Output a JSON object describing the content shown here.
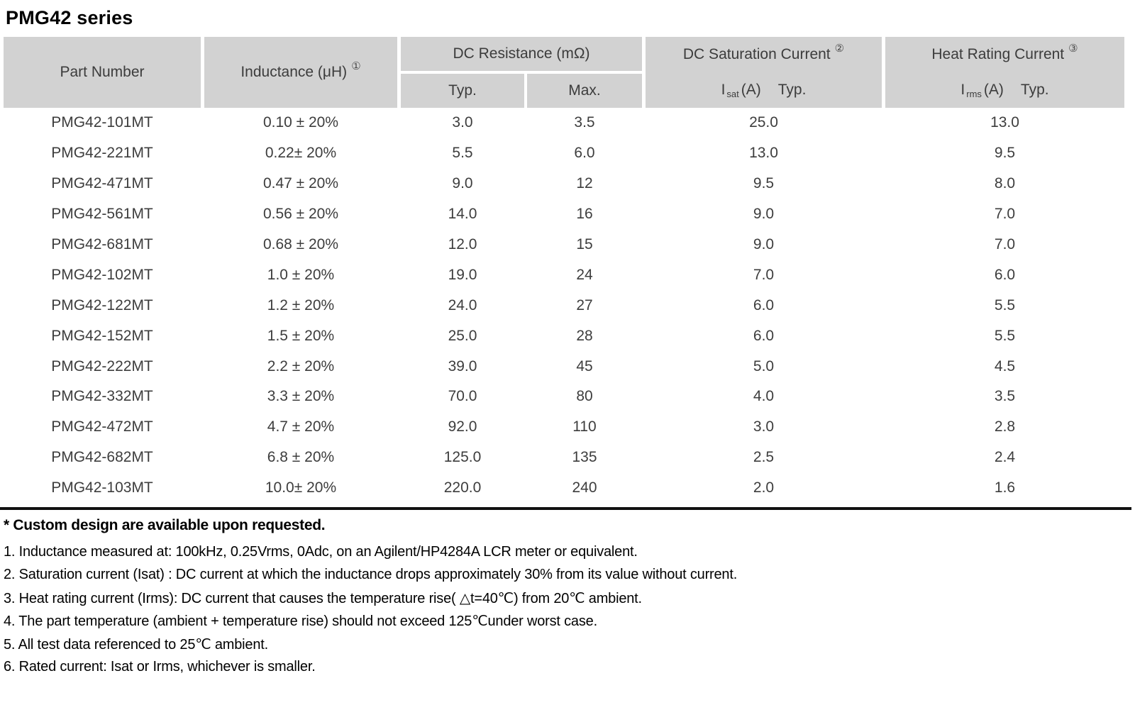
{
  "page_title": "PMG42 series",
  "table": {
    "headers": {
      "part_number": "Part Number",
      "inductance": "Inductance (μH)",
      "inductance_note_ref": "①",
      "dc_resistance_group": "DC Resistance (mΩ)",
      "dc_resistance_typ": "Typ.",
      "dc_resistance_max": "Max.",
      "dc_saturation_group": "DC Saturation Current",
      "dc_saturation_note_ref": "②",
      "isat_base": "I",
      "isat_sub": "sat",
      "isat_unit": "(A)",
      "isat_typ": "Typ.",
      "heat_rating_group": "Heat Rating Current",
      "heat_rating_note_ref": "③",
      "irms_base": "I",
      "irms_sub": "rms",
      "irms_unit": "(A)",
      "irms_typ": "Typ."
    },
    "rows": [
      [
        "PMG42-101MT",
        "0.10 ± 20%",
        "3.0",
        "3.5",
        "25.0",
        "13.0"
      ],
      [
        "PMG42-221MT",
        "0.22± 20%",
        "5.5",
        "6.0",
        "13.0",
        "9.5"
      ],
      [
        "PMG42-471MT",
        "0.47 ± 20%",
        "9.0",
        "12",
        "9.5",
        "8.0"
      ],
      [
        "PMG42-561MT",
        "0.56 ± 20%",
        "14.0",
        "16",
        "9.0",
        "7.0"
      ],
      [
        "PMG42-681MT",
        "0.68 ± 20%",
        "12.0",
        "15",
        "9.0",
        "7.0"
      ],
      [
        "PMG42-102MT",
        "1.0 ± 20%",
        "19.0",
        "24",
        "7.0",
        "6.0"
      ],
      [
        "PMG42-122MT",
        "1.2 ± 20%",
        "24.0",
        "27",
        "6.0",
        "5.5"
      ],
      [
        "PMG42-152MT",
        "1.5 ± 20%",
        "25.0",
        "28",
        "6.0",
        "5.5"
      ],
      [
        "PMG42-222MT",
        "2.2 ± 20%",
        "39.0",
        "45",
        "5.0",
        "4.5"
      ],
      [
        "PMG42-332MT",
        "3.3 ± 20%",
        "70.0",
        "80",
        "4.0",
        "3.5"
      ],
      [
        "PMG42-472MT",
        "4.7 ± 20%",
        "92.0",
        "110",
        "3.0",
        "2.8"
      ],
      [
        "PMG42-682MT",
        "6.8 ± 20%",
        "125.0",
        "135",
        "2.5",
        "2.4"
      ],
      [
        "PMG42-103MT",
        "10.0± 20%",
        "220.0",
        "240",
        "2.0",
        "1.6"
      ]
    ]
  },
  "footnote_bold": "* Custom design are available upon requested.",
  "notes": [
    "1. Inductance measured at: 100kHz, 0.25Vrms, 0Adc, on an Agilent/HP4284A LCR meter or equivalent.",
    "2. Saturation current (Isat) : DC current at which the inductance drops approximately 30% from its value without current.",
    "3. Heat rating current (Irms): DC current that causes the temperature rise( △t=40℃) from 20℃ ambient.",
    "4. The part temperature (ambient + temperature rise) should not exceed 125℃under worst case.",
    "5. All test data referenced to 25℃ ambient.",
    "6. Rated current: Isat or Irms, whichever is smaller."
  ],
  "colors": {
    "header_bg": "#d2d2d2",
    "rule": "#111111",
    "table_text": "#3d3d3d"
  }
}
